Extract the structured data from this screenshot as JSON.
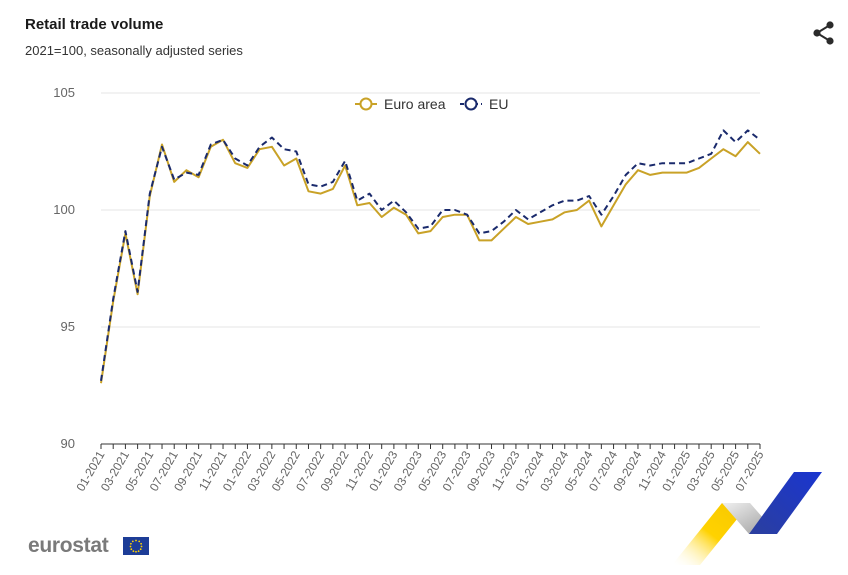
{
  "header": {
    "title": "Retail trade volume",
    "subtitle": "2021=100, seasonally adjusted series"
  },
  "footer": {
    "logo_text": "eurostat"
  },
  "icons": {
    "share": "share-icon",
    "flag": "eu-flag-icon"
  },
  "colors": {
    "euro_area": "#C9A227",
    "eu": "#1A2A6C",
    "grid": "#e6e6e6",
    "axis": "#666666"
  },
  "chart_data": {
    "type": "line",
    "title": "Retail trade volume",
    "subtitle": "2021=100, seasonally adjusted series",
    "xlabel": "",
    "ylabel": "",
    "ylim": [
      90,
      105
    ],
    "yticks": [
      90,
      95,
      100,
      105
    ],
    "grid": true,
    "legend_position": "top-center",
    "x": [
      "01-2021",
      "02-2021",
      "03-2021",
      "04-2021",
      "05-2021",
      "06-2021",
      "07-2021",
      "08-2021",
      "09-2021",
      "10-2021",
      "11-2021",
      "12-2021",
      "01-2022",
      "02-2022",
      "03-2022",
      "04-2022",
      "05-2022",
      "06-2022",
      "07-2022",
      "08-2022",
      "09-2022",
      "10-2022",
      "11-2022",
      "12-2022",
      "01-2023",
      "02-2023",
      "03-2023",
      "04-2023",
      "05-2023",
      "06-2023",
      "07-2023",
      "08-2023",
      "09-2023",
      "10-2023",
      "11-2023",
      "12-2023",
      "01-2024",
      "02-2024",
      "03-2024",
      "04-2024",
      "05-2024",
      "06-2024",
      "07-2024",
      "08-2024",
      "09-2024",
      "10-2024",
      "11-2024",
      "12-2024",
      "01-2025",
      "02-2025",
      "03-2025",
      "04-2025",
      "05-2025",
      "06-2025",
      "07-2025"
    ],
    "xtick_labels": [
      "01-2021",
      "03-2021",
      "05-2021",
      "07-2021",
      "09-2021",
      "11-2021",
      "01-2022",
      "03-2022",
      "05-2022",
      "07-2022",
      "09-2022",
      "11-2022",
      "01-2023",
      "03-2023",
      "05-2023",
      "07-2023",
      "09-2023",
      "11-2023",
      "01-2024",
      "03-2024",
      "05-2024",
      "07-2024",
      "09-2024",
      "11-2024",
      "01-2025",
      "03-2025",
      "05-2025",
      "07-2025"
    ],
    "series": [
      {
        "name": "Euro area",
        "color": "#C9A227",
        "style": "solid",
        "values": [
          92.6,
          96.1,
          99.0,
          96.4,
          100.6,
          102.8,
          101.2,
          101.7,
          101.4,
          102.7,
          103.0,
          102.0,
          101.8,
          102.6,
          102.7,
          101.9,
          102.2,
          100.8,
          100.7,
          100.9,
          101.9,
          100.2,
          100.3,
          99.7,
          100.1,
          99.8,
          99.0,
          99.1,
          99.7,
          99.8,
          99.8,
          98.7,
          98.7,
          99.2,
          99.7,
          99.4,
          99.5,
          99.6,
          99.9,
          100.0,
          100.4,
          99.3,
          100.2,
          101.1,
          101.7,
          101.5,
          101.6,
          101.6,
          101.6,
          101.8,
          102.2,
          102.6,
          102.3,
          102.9,
          102.4
        ]
      },
      {
        "name": "EU",
        "color": "#1A2A6C",
        "style": "dashed",
        "values": [
          92.7,
          96.2,
          99.1,
          96.5,
          100.7,
          102.7,
          101.3,
          101.6,
          101.5,
          102.8,
          103.0,
          102.2,
          101.9,
          102.7,
          103.1,
          102.6,
          102.5,
          101.1,
          101.0,
          101.2,
          102.1,
          100.4,
          100.7,
          100.0,
          100.4,
          99.9,
          99.2,
          99.3,
          100.0,
          100.0,
          99.8,
          99.0,
          99.1,
          99.5,
          100.0,
          99.6,
          99.9,
          100.2,
          100.4,
          100.4,
          100.6,
          99.8,
          100.6,
          101.5,
          102.0,
          101.9,
          102.0,
          102.0,
          102.0,
          102.2,
          102.4,
          103.4,
          102.9,
          103.4,
          103.0
        ]
      }
    ]
  }
}
